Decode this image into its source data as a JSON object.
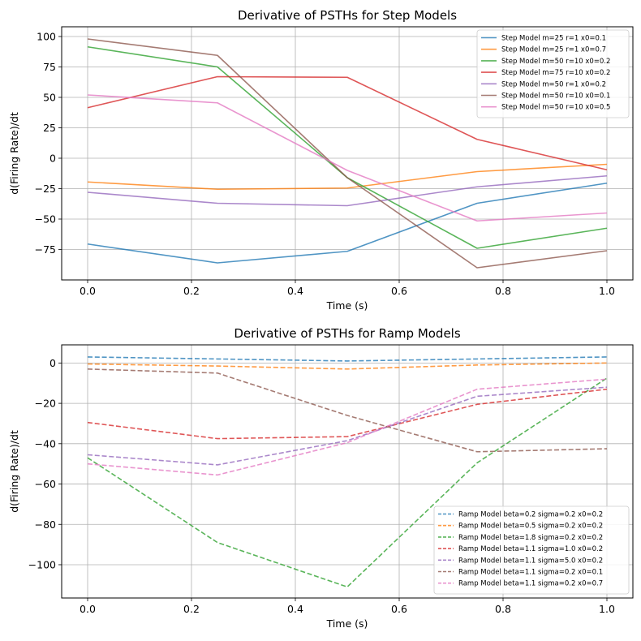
{
  "chart_data": [
    {
      "type": "line",
      "title": "Derivative of PSTHs for Step Models",
      "xlabel": "Time (s)",
      "ylabel": "d(Firing Rate)/dt",
      "xlim": [
        -0.05,
        1.05
      ],
      "ylim": [
        -100,
        108
      ],
      "xticks": [
        0.0,
        0.2,
        0.4,
        0.6,
        0.8,
        1.0
      ],
      "xtick_labels": [
        "0.0",
        "0.2",
        "0.4",
        "0.6",
        "0.8",
        "1.0"
      ],
      "yticks": [
        -75,
        -50,
        -25,
        0,
        25,
        50,
        75,
        100
      ],
      "ytick_labels": [
        "−75",
        "−50",
        "−25",
        "0",
        "25",
        "50",
        "75",
        "100"
      ],
      "grid": true,
      "linestyle": "solid",
      "legend": "top-right",
      "x": [
        0.0,
        0.25,
        0.5,
        0.75,
        1.0
      ],
      "series": [
        {
          "name": "Step Model m=25 r=1 x0=0.1",
          "color": "#1f77b4",
          "values": [
            -70.5,
            -86,
            -76.5,
            -37,
            -20.5
          ]
        },
        {
          "name": "Step Model m=25 r=1 x0=0.7",
          "color": "#ff7f0e",
          "values": [
            -19.5,
            -25.5,
            -24.5,
            -11,
            -5
          ]
        },
        {
          "name": "Step Model m=50 r=10 x0=0.2",
          "color": "#2ca02c",
          "values": [
            91.5,
            75,
            -16,
            -74,
            -57.5
          ]
        },
        {
          "name": "Step Model m=75 r=10 x0=0.2",
          "color": "#d62728",
          "values": [
            41.5,
            67,
            66.5,
            15.5,
            -9.5
          ]
        },
        {
          "name": "Step Model m=50 r=1 x0=0.2",
          "color": "#9467bd",
          "values": [
            -28,
            -37,
            -39,
            -23.5,
            -14.5
          ]
        },
        {
          "name": "Step Model m=50 r=10 x0=0.1",
          "color": "#8c564b",
          "values": [
            98,
            84.5,
            -16,
            -90,
            -76
          ]
        },
        {
          "name": "Step Model m=50 r=10 x0=0.5",
          "color": "#e377c2",
          "values": [
            52,
            45.5,
            -10,
            -51.5,
            -45
          ]
        }
      ]
    },
    {
      "type": "line",
      "title": "Derivative of PSTHs for Ramp Models",
      "xlabel": "Time (s)",
      "ylabel": "d(Firing Rate)/dt",
      "xlim": [
        -0.05,
        1.05
      ],
      "ylim": [
        -116.5,
        9
      ],
      "xticks": [
        0.0,
        0.2,
        0.4,
        0.6,
        0.8,
        1.0
      ],
      "xtick_labels": [
        "0.0",
        "0.2",
        "0.4",
        "0.6",
        "0.8",
        "1.0"
      ],
      "yticks": [
        -100,
        -80,
        -60,
        -40,
        -20,
        0
      ],
      "ytick_labels": [
        "−100",
        "−80",
        "−60",
        "−40",
        "−20",
        "0"
      ],
      "grid": true,
      "linestyle": "dashed",
      "legend": "bottom-right",
      "x": [
        0.0,
        0.25,
        0.5,
        0.75,
        1.0
      ],
      "series": [
        {
          "name": "Ramp Model beta=0.2 sigma=0.2 x0=0.2",
          "color": "#1f77b4",
          "values": [
            3,
            2,
            1,
            2,
            3
          ]
        },
        {
          "name": "Ramp Model beta=0.5 sigma=0.2 x0=0.2",
          "color": "#ff7f0e",
          "values": [
            -0.5,
            -1.5,
            -3,
            -1,
            0
          ]
        },
        {
          "name": "Ramp Model beta=1.8 sigma=0.2 x0=0.2",
          "color": "#2ca02c",
          "values": [
            -47,
            -89,
            -111,
            -49.5,
            -7.5
          ]
        },
        {
          "name": "Ramp Model beta=1.1 sigma=1.0 x0=0.2",
          "color": "#d62728",
          "values": [
            -29.5,
            -37.5,
            -36.5,
            -20.5,
            -13
          ]
        },
        {
          "name": "Ramp Model beta=1.1 sigma=5.0 x0=0.2",
          "color": "#9467bd",
          "values": [
            -45.5,
            -50.5,
            -38.5,
            -16.5,
            -12
          ]
        },
        {
          "name": "Ramp Model beta=1.1 sigma=0.2 x0=0.1",
          "color": "#8c564b",
          "values": [
            -3,
            -5,
            -26,
            -44,
            -42.5
          ]
        },
        {
          "name": "Ramp Model beta=1.1 sigma=0.2 x0=0.7",
          "color": "#e377c2",
          "values": [
            -50,
            -55.5,
            -39.5,
            -13,
            -8
          ]
        }
      ]
    }
  ]
}
